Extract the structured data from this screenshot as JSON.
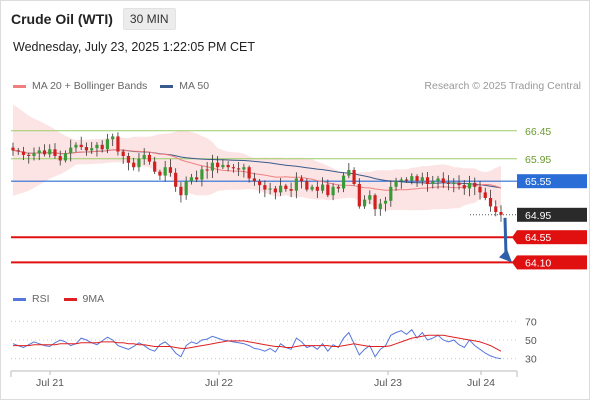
{
  "header": {
    "title": "Crude Oil (WTI)",
    "timeframe": "30 MIN"
  },
  "date_line": "Wednesday, July 23, 2025 1:22:05 PM CET",
  "legend": [
    {
      "label": "MA 20 + Bollinger Bands",
      "color": "#f08080"
    },
    {
      "label": "MA 50",
      "color": "#3a5a8c"
    }
  ],
  "credit": "Research © 2025 Trading Central",
  "rsi_legend": [
    {
      "label": "RSI",
      "color": "#5577dd"
    },
    {
      "label": "9MA",
      "color": "#e02020"
    }
  ],
  "colors": {
    "green_level": "#9acd6a",
    "blue_level": "#2a6dd6",
    "red_level": "#e01010",
    "arrow": "#2e5fa8",
    "up_candle": "#3a9a3a",
    "down_candle": "#d02020",
    "band_fill": "#fde4e4"
  },
  "chart_data": {
    "type": "candlestick",
    "x_tick_labels": [
      "Jul 21",
      "Jul 22",
      "Jul 23",
      "Jul 24"
    ],
    "ylim": [
      63.75,
      67.0
    ],
    "levels": [
      {
        "label": "66.45",
        "value": 66.45,
        "kind": "resistance"
      },
      {
        "label": "65.95",
        "value": 65.95,
        "kind": "resistance"
      },
      {
        "label": "65.55",
        "value": 65.55,
        "kind": "pivot"
      },
      {
        "label": "64.95",
        "value": 64.95,
        "kind": "last"
      },
      {
        "label": "64.55",
        "value": 64.55,
        "kind": "support"
      },
      {
        "label": "64.10",
        "value": 64.1,
        "kind": "support"
      }
    ],
    "close": [
      66.1,
      66.08,
      66.02,
      66.0,
      66.05,
      66.1,
      66.03,
      66.12,
      66.0,
      65.92,
      66.05,
      66.15,
      66.2,
      66.16,
      66.1,
      66.14,
      66.2,
      66.12,
      66.3,
      66.35,
      66.08,
      66.0,
      65.88,
      65.8,
      65.95,
      66.02,
      65.9,
      65.72,
      65.65,
      65.8,
      65.7,
      65.45,
      65.3,
      65.55,
      65.62,
      65.58,
      65.76,
      65.74,
      65.88,
      65.8,
      65.84,
      65.8,
      65.78,
      65.76,
      65.8,
      65.6,
      65.55,
      65.48,
      65.4,
      65.42,
      65.35,
      65.47,
      65.41,
      65.38,
      65.6,
      65.55,
      65.4,
      65.45,
      65.38,
      65.49,
      65.3,
      65.45,
      65.42,
      65.65,
      65.75,
      65.5,
      65.1,
      65.22,
      65.3,
      65.05,
      65.15,
      65.2,
      65.45,
      65.55,
      65.58,
      65.56,
      65.64,
      65.55,
      65.62,
      65.5,
      65.55,
      65.6,
      65.52,
      65.5,
      65.52,
      65.48,
      65.42,
      65.52,
      65.45,
      65.35,
      65.25,
      65.1,
      65.0,
      64.95
    ],
    "rsi": {
      "ticks": [
        70,
        50,
        30
      ],
      "ylim": [
        20,
        80
      ],
      "rsi": [
        46,
        44,
        42,
        45,
        48,
        46,
        44,
        43,
        47,
        50,
        48,
        44,
        46,
        52,
        50,
        47,
        45,
        49,
        53,
        50,
        44,
        42,
        40,
        43,
        47,
        44,
        40,
        38,
        45,
        48,
        43,
        36,
        32,
        44,
        48,
        46,
        50,
        51,
        54,
        52,
        50,
        49,
        48,
        47,
        46,
        44,
        41,
        40,
        38,
        41,
        37,
        46,
        42,
        40,
        52,
        48,
        42,
        44,
        40,
        46,
        38,
        45,
        42,
        52,
        58,
        46,
        34,
        40,
        44,
        32,
        40,
        44,
        55,
        58,
        60,
        56,
        61,
        52,
        58,
        50,
        52,
        55,
        50,
        48,
        50,
        45,
        42,
        50,
        44,
        40,
        36,
        33,
        31,
        30
      ],
      "ma9": [
        44,
        44,
        44,
        44,
        45,
        45,
        45,
        45,
        45,
        46,
        46,
        46,
        46,
        47,
        47,
        47,
        47,
        48,
        48,
        48,
        47,
        47,
        46,
        46,
        45,
        45,
        44,
        43,
        43,
        43,
        43,
        42,
        41,
        41,
        42,
        43,
        44,
        45,
        46,
        47,
        48,
        49,
        49,
        49,
        49,
        48,
        47,
        46,
        45,
        44,
        43,
        43,
        42,
        42,
        43,
        44,
        44,
        44,
        44,
        44,
        44,
        43,
        43,
        44,
        45,
        46,
        45,
        44,
        43,
        43,
        43,
        43,
        44,
        46,
        48,
        50,
        52,
        53,
        54,
        55,
        55,
        55,
        55,
        54,
        53,
        52,
        51,
        50,
        49,
        48,
        46,
        44,
        41,
        38
      ]
    }
  }
}
